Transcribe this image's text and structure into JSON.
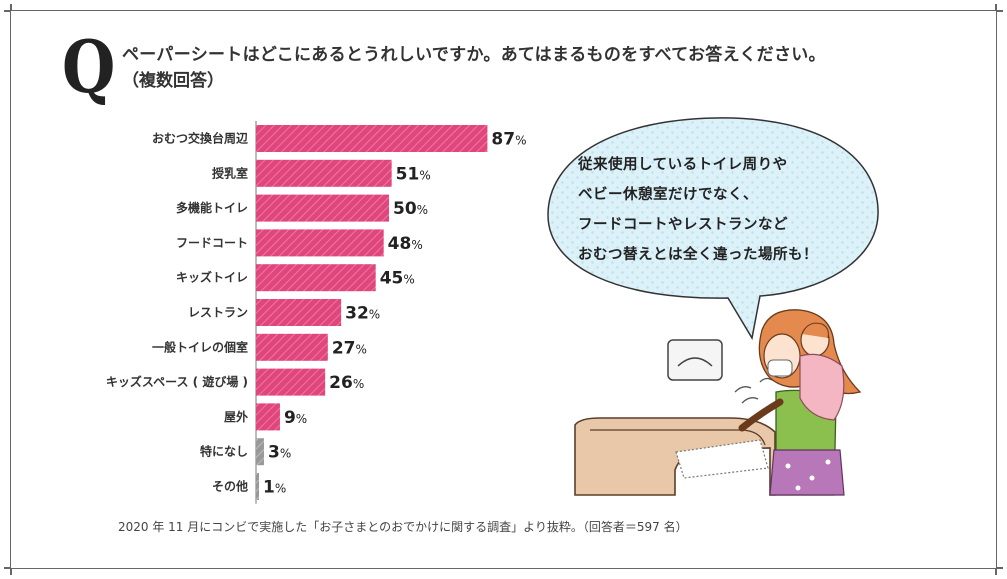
{
  "question": {
    "letter": "Q",
    "text": "ペーパーシートはどこにあるとうれしいですか。あてはまるものをすべてお答えください。",
    "subtext": "（複数回答）"
  },
  "bubble": {
    "lines": [
      "従来使用しているトイレ周りや",
      "ベビー休憩室だけでなく、",
      "フードコートやレストランなど",
      "おむつ替えとは全く違った場所も！"
    ]
  },
  "footnote": "2020 年 11 月にコンビで実施した「お子さまとのおでかけに関する調査」より抜粋。（回答者＝597 名）",
  "chart_data": {
    "type": "bar",
    "orientation": "horizontal",
    "categories": [
      "おむつ交換台周辺",
      "授乳室",
      "多機能トイレ",
      "フードコート",
      "キッズトイレ",
      "レストラン",
      "一般トイレの個室",
      "キッズスペース ( 遊び場 )",
      "屋外",
      "特になし",
      "その他"
    ],
    "values": [
      87,
      51,
      50,
      48,
      45,
      32,
      27,
      26,
      9,
      3,
      1
    ],
    "unit": "%",
    "colors": [
      "#e0457b",
      "#e0457b",
      "#e0457b",
      "#e0457b",
      "#e0457b",
      "#e0457b",
      "#e0457b",
      "#e0457b",
      "#e0457b",
      "#999999",
      "#999999"
    ],
    "xlim": [
      0,
      100
    ],
    "grid": false,
    "legend": "none"
  },
  "colors": {
    "bar_main": "#e0457b",
    "bar_other": "#999999",
    "bubble_fill": "#ddf1f8",
    "bubble_dots": "#b9e0ee"
  }
}
